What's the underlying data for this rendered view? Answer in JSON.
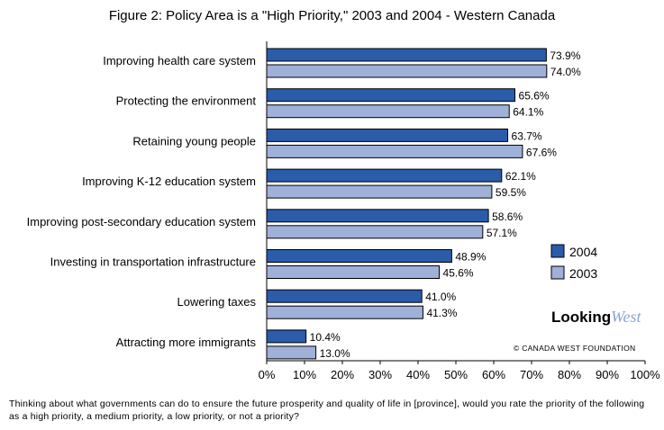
{
  "title": "Figure 2: Policy Area is a \"High Priority,\" 2003 and 2004 - Western Canada",
  "caption": "Thinking about what governments can do to ensure the future prosperity and quality of life in [province], would you rate the priority of the following as a high priority, a medium priority, a low priority, or not a priority?",
  "brand": {
    "name": "Looking",
    "name_accent": "West",
    "year": "2004",
    "copyright": "© CANADA WEST FOUNDATION"
  },
  "colors": {
    "s2004": "#2a5caa",
    "s2003": "#9fb0d9",
    "border": "#000000"
  },
  "chart_data": {
    "type": "bar",
    "orientation": "horizontal",
    "categories": [
      "Improving health care system",
      "Protecting the environment",
      "Retaining young people",
      "Improving K-12 education system",
      "Improving post-secondary education system",
      "Investing in transportation infrastructure",
      "Lowering taxes",
      "Attracting more immigrants"
    ],
    "series": [
      {
        "name": "2004",
        "values": [
          73.9,
          65.6,
          63.7,
          62.1,
          58.6,
          48.9,
          41.0,
          10.4
        ],
        "labels": [
          "73.9%",
          "65.6%",
          "63.7%",
          "62.1%",
          "58.6%",
          "48.9%",
          "41.0%",
          "10.4%"
        ]
      },
      {
        "name": "2003",
        "values": [
          74.0,
          64.1,
          67.6,
          59.5,
          57.1,
          45.6,
          41.3,
          13.0
        ],
        "labels": [
          "74.0%",
          "64.1%",
          "67.6%",
          "59.5%",
          "57.1%",
          "45.6%",
          "41.3%",
          "13.0%"
        ]
      }
    ],
    "xlim": [
      0,
      100
    ],
    "xticks": [
      "0%",
      "10%",
      "20%",
      "30%",
      "40%",
      "50%",
      "60%",
      "70%",
      "80%",
      "90%",
      "100%"
    ],
    "legend": "right",
    "grid": false
  }
}
